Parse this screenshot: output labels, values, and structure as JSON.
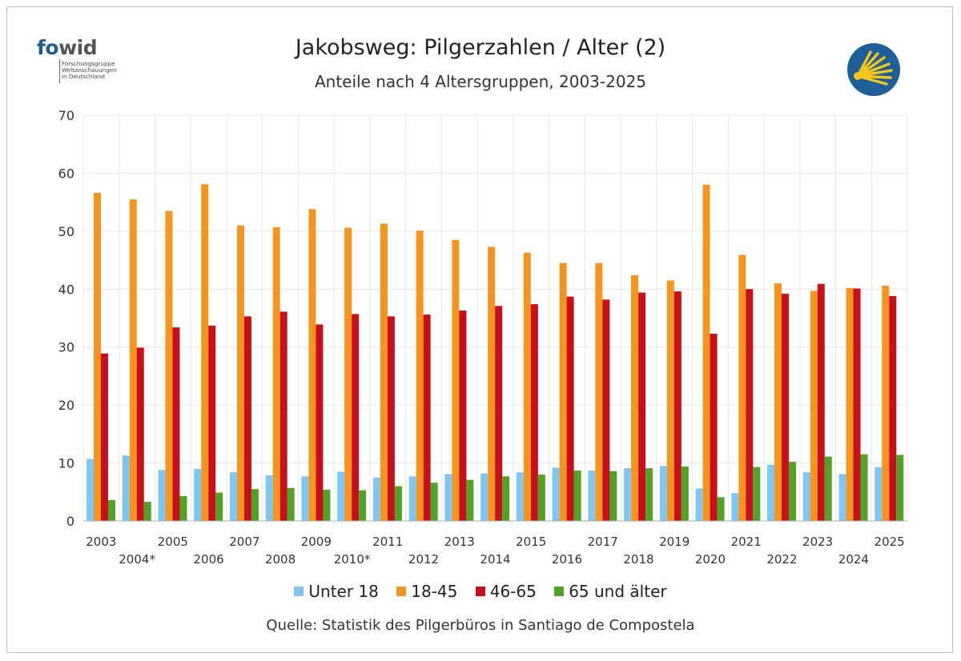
{
  "header": {
    "title": "Jakobsweg: Pilgerzahlen / Alter (2)",
    "subtitle": "Anteile nach 4 Altersgruppen, 2003-2025"
  },
  "logo": {
    "word_fo": "fo",
    "word_wid": "wid",
    "subtitle_lines": "Forschungsgruppe\nWeltanschauungen\nin Deutschland"
  },
  "footer": {
    "source": "Quelle: Statistik des Pilgerbüros in Santiago de Compostela"
  },
  "colors": {
    "u18": "#7fc6f5",
    "a18_45": "#f7941d",
    "a46_65": "#c8101a",
    "a65": "#52a227",
    "grid": "#e6e6e6",
    "axis": "#b0b0b0",
    "shell_bg": "#1f5f99",
    "shell_fg": "#f5c518"
  },
  "chart_data": {
    "type": "bar",
    "title": "Jakobsweg: Pilgerzahlen / Alter (2)",
    "subtitle": "Anteile nach 4 Altersgruppen, 2003-2025",
    "xlabel": "",
    "ylabel": "",
    "ylim": [
      0,
      70
    ],
    "yticks": [
      0,
      10,
      20,
      30,
      40,
      50,
      60,
      70
    ],
    "grid": true,
    "legend_position": "bottom",
    "categories": [
      "2003",
      "2004*",
      "2005",
      "2006",
      "2007",
      "2008",
      "2009",
      "2010*",
      "2011",
      "2012",
      "2013",
      "2014",
      "2015",
      "2016",
      "2017",
      "2018",
      "2019",
      "2020",
      "2021",
      "2022",
      "2023",
      "2024",
      "2025"
    ],
    "series": [
      {
        "name": "Unter 18",
        "color_key": "u18",
        "values": [
          10.7,
          11.3,
          8.8,
          9.0,
          8.4,
          7.9,
          7.7,
          8.5,
          7.5,
          7.7,
          8.1,
          8.2,
          8.4,
          9.2,
          8.7,
          9.1,
          9.5,
          5.6,
          4.8,
          9.7,
          8.4,
          8.1,
          9.3
        ]
      },
      {
        "name": "18-45",
        "color_key": "a18_45",
        "values": [
          56.6,
          55.5,
          53.5,
          58.1,
          51.0,
          50.7,
          53.8,
          50.6,
          51.3,
          50.1,
          48.5,
          47.3,
          46.3,
          44.5,
          44.5,
          42.4,
          41.5,
          58.0,
          45.9,
          41.0,
          39.7,
          40.2,
          40.6
        ]
      },
      {
        "name": "46-65",
        "color_key": "a46_65",
        "values": [
          28.9,
          29.9,
          33.4,
          33.7,
          35.3,
          36.1,
          33.9,
          35.7,
          35.3,
          35.6,
          36.3,
          37.1,
          37.4,
          38.7,
          38.2,
          39.4,
          39.6,
          32.3,
          40.0,
          39.2,
          40.9,
          40.1,
          38.8
        ]
      },
      {
        "name": "65 und älter",
        "color_key": "a65",
        "values": [
          3.6,
          3.3,
          4.3,
          4.9,
          5.5,
          5.7,
          5.4,
          5.3,
          6.0,
          6.6,
          7.1,
          7.7,
          8.0,
          8.7,
          8.6,
          9.1,
          9.4,
          4.1,
          9.3,
          10.2,
          11.1,
          11.5,
          11.4
        ]
      }
    ]
  }
}
